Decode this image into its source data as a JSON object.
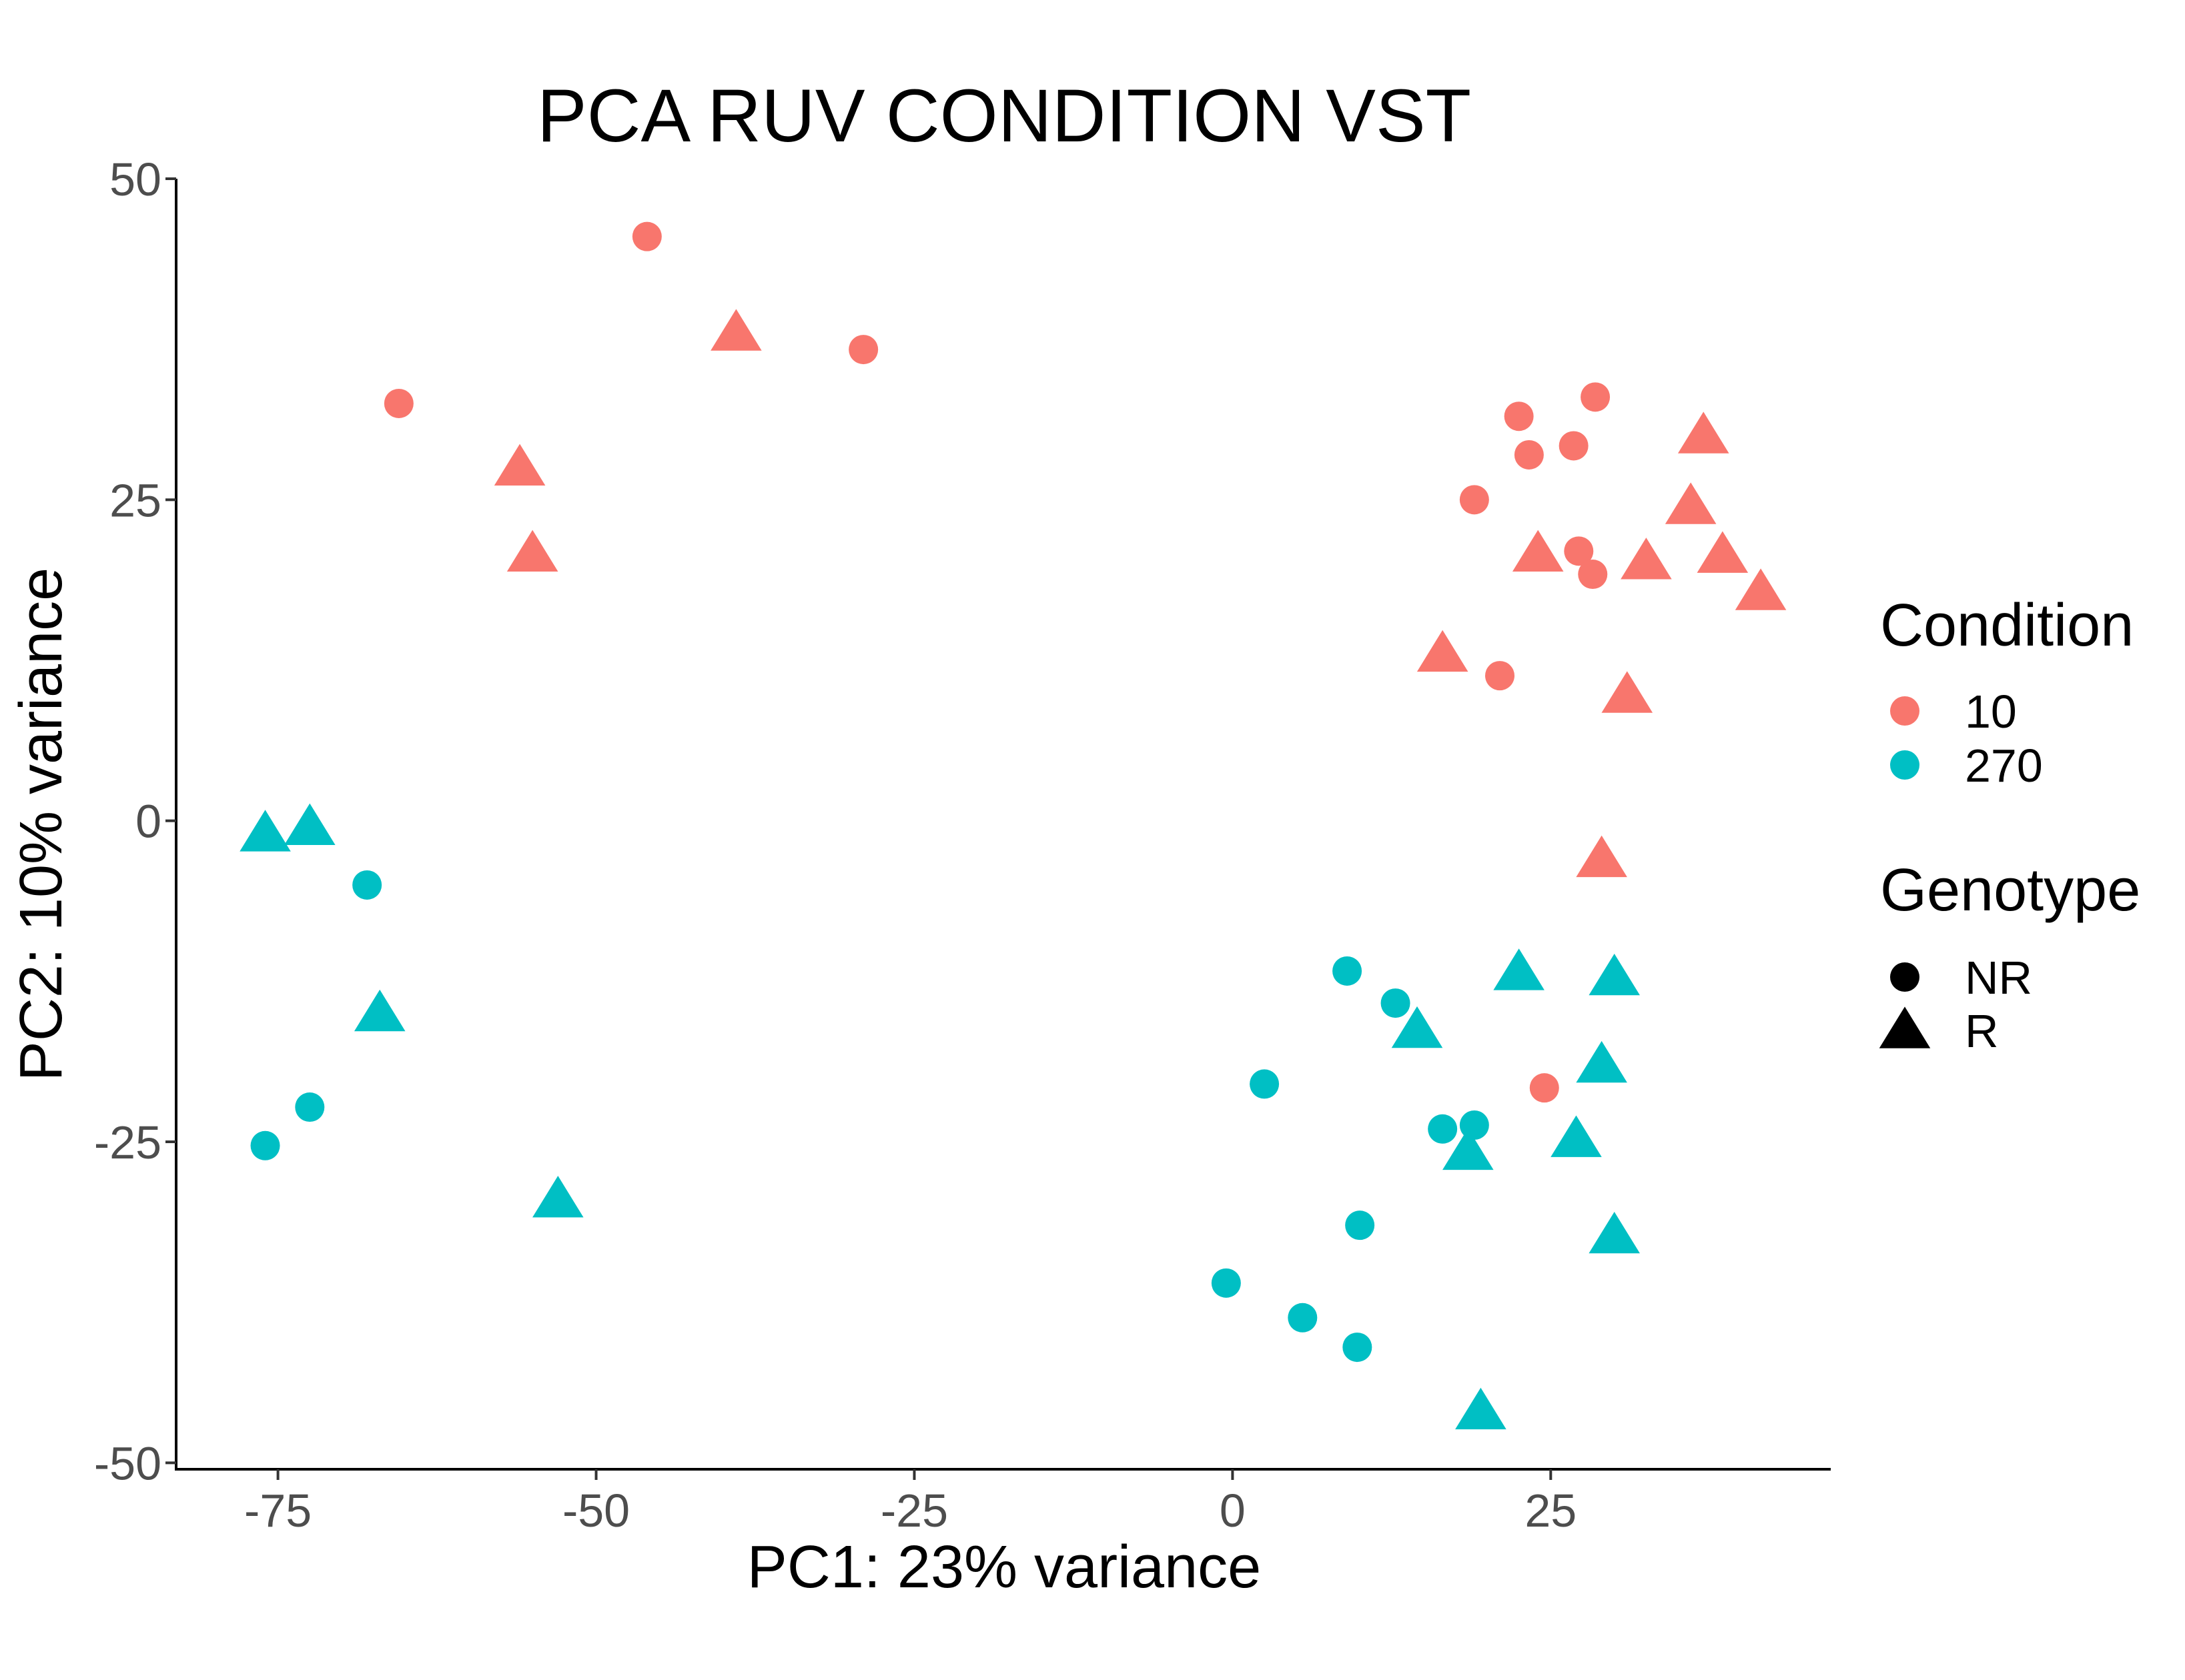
{
  "chart_data": {
    "type": "scatter",
    "title": "PCA RUV CONDITION VST",
    "xlabel": "PC1: 23% variance",
    "ylabel": "PC2: 10% variance",
    "xlim": [
      -83,
      47
    ],
    "ylim": [
      -50.5,
      50
    ],
    "x_ticks": [
      -75,
      -50,
      -25,
      0,
      25
    ],
    "x_tick_labels": [
      "-75",
      "-50",
      "-25",
      "0",
      "25"
    ],
    "y_ticks": [
      -50,
      -25,
      0,
      25,
      50
    ],
    "y_tick_labels": [
      "-50",
      "-25",
      "0",
      "25",
      "50"
    ],
    "grid": false,
    "legend_position": "right",
    "legends": [
      {
        "title": "Condition",
        "entries": [
          {
            "label": "10",
            "color": "#F8766D",
            "shape": "circle"
          },
          {
            "label": "270",
            "color": "#00BFC4",
            "shape": "circle"
          }
        ]
      },
      {
        "title": "Genotype",
        "entries": [
          {
            "label": "NR",
            "color": "#000000",
            "shape": "circle"
          },
          {
            "label": "R",
            "color": "#000000",
            "shape": "triangle"
          }
        ]
      }
    ],
    "series": [
      {
        "condition": "10",
        "genotype": "NR",
        "color": "#F8766D",
        "shape": "circle",
        "points": [
          [
            -46.0,
            45.5
          ],
          [
            -65.5,
            32.5
          ],
          [
            -29.0,
            36.7
          ],
          [
            22.5,
            31.5
          ],
          [
            28.5,
            33.0
          ],
          [
            23.3,
            28.5
          ],
          [
            26.8,
            29.2
          ],
          [
            19.0,
            25.0
          ],
          [
            27.2,
            21.0
          ],
          [
            28.3,
            19.2
          ],
          [
            21.0,
            11.3
          ],
          [
            24.5,
            -20.8
          ]
        ]
      },
      {
        "condition": "10",
        "genotype": "R",
        "color": "#F8766D",
        "shape": "triangle",
        "points": [
          [
            -39.0,
            38.0
          ],
          [
            -56.0,
            27.5
          ],
          [
            -55.0,
            20.8
          ],
          [
            37.0,
            30.0
          ],
          [
            36.0,
            24.5
          ],
          [
            24.0,
            20.8
          ],
          [
            32.5,
            20.2
          ],
          [
            38.5,
            20.7
          ],
          [
            41.5,
            17.8
          ],
          [
            16.5,
            13.0
          ],
          [
            31.0,
            9.8
          ],
          [
            29.0,
            -3.0
          ]
        ]
      },
      {
        "condition": "270",
        "genotype": "NR",
        "color": "#00BFC4",
        "shape": "circle",
        "points": [
          [
            -68.0,
            -5.0
          ],
          [
            -72.5,
            -22.3
          ],
          [
            -76.0,
            -25.3
          ],
          [
            9.0,
            -11.7
          ],
          [
            12.8,
            -14.2
          ],
          [
            2.5,
            -20.5
          ],
          [
            16.5,
            -24.0
          ],
          [
            19.0,
            -23.7
          ],
          [
            10.0,
            -31.5
          ],
          [
            -0.5,
            -36.0
          ],
          [
            5.5,
            -38.7
          ],
          [
            9.8,
            -41.0
          ]
        ]
      },
      {
        "condition": "270",
        "genotype": "R",
        "color": "#00BFC4",
        "shape": "triangle",
        "points": [
          [
            -76.0,
            -1.0
          ],
          [
            -72.5,
            -0.5
          ],
          [
            -67.0,
            -15.0
          ],
          [
            -53.0,
            -29.5
          ],
          [
            22.5,
            -11.8
          ],
          [
            30.0,
            -12.2
          ],
          [
            14.5,
            -16.3
          ],
          [
            29.0,
            -19.0
          ],
          [
            18.5,
            -25.8
          ],
          [
            27.0,
            -24.8
          ],
          [
            30.0,
            -32.3
          ],
          [
            19.5,
            -46.0
          ]
        ]
      }
    ]
  }
}
